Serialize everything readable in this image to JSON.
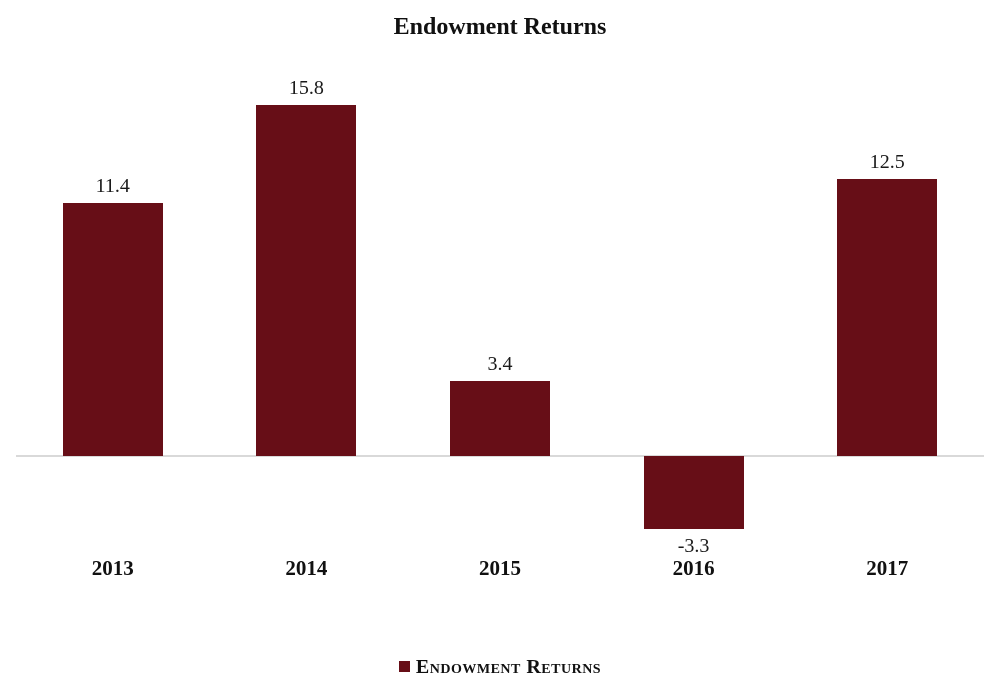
{
  "chart_data": {
    "type": "bar",
    "title": "Endowment Returns",
    "categories": [
      "2013",
      "2014",
      "2015",
      "2016",
      "2017"
    ],
    "series": [
      {
        "name": "Endowment Returns",
        "values": [
          11.4,
          15.8,
          3.4,
          -3.3,
          12.5
        ]
      }
    ],
    "data_labels": [
      "11.4",
      "15.8",
      "3.4",
      "-3.3",
      "12.5"
    ],
    "ylim": [
      -5,
      18
    ],
    "grid": false,
    "y_axis_visible": false,
    "legend_position": "bottom",
    "legend_label": "Endowment Returns",
    "colors": {
      "bar": "#670E17",
      "axis_line": "#D9D9D9",
      "text": "#111111",
      "background": "#FFFFFF"
    }
  }
}
